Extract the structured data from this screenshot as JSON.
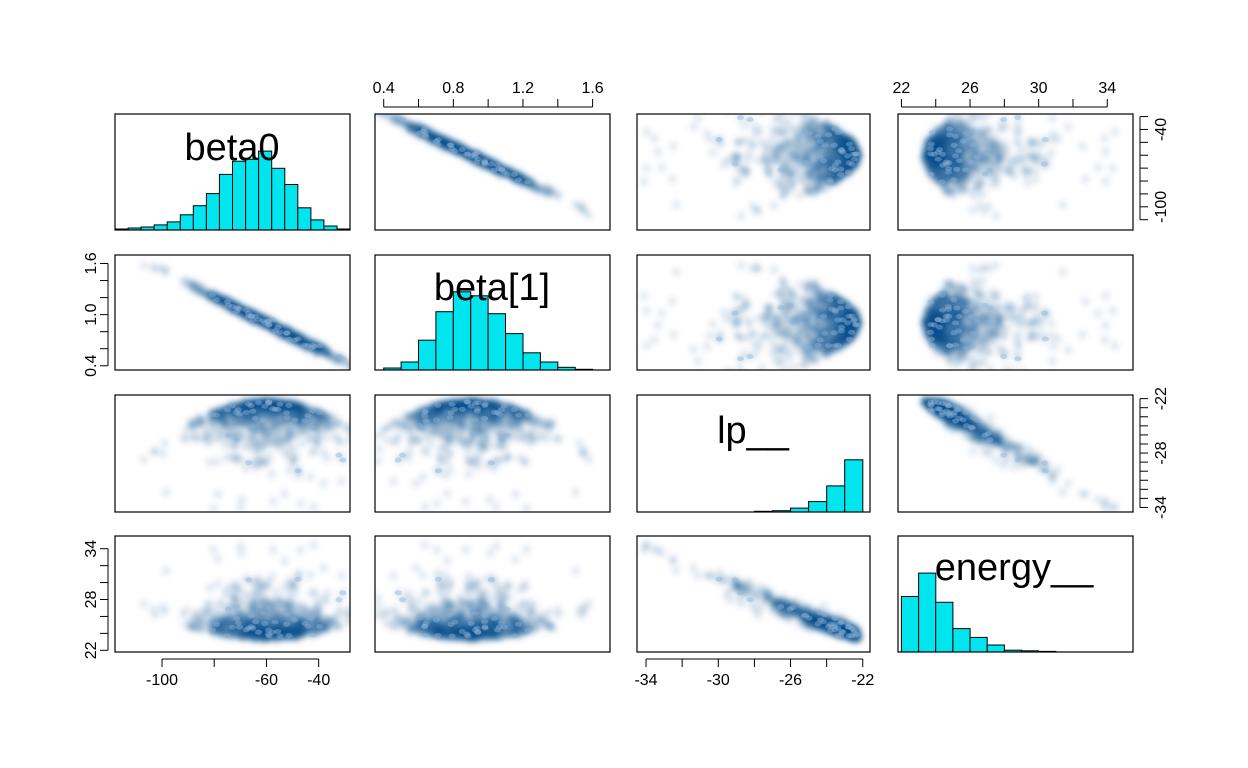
{
  "chart_data": {
    "type": "pairs",
    "variables": [
      "beta0",
      "beta[1]",
      "lp__",
      "energy__"
    ],
    "diag_type": "histogram",
    "offdiag_type": "smoothed-scatter",
    "colors": {
      "hist_fill": "#00E5EE",
      "density": "#08306B",
      "frame": "#000000"
    },
    "axes": {
      "beta0": {
        "range": [
          -118,
          -28
        ],
        "ticks": [
          -100,
          -80,
          -60,
          -40
        ],
        "tick_labels": [
          "-100",
          "",
          "-60",
          "-40"
        ],
        "right_ticks": [
          -30,
          -40,
          -50,
          -60,
          -70,
          -80,
          -90,
          -100,
          -110
        ],
        "right_labels": [
          "",
          "-40",
          "",
          "",
          "",
          "",
          "",
          "-100",
          ""
        ]
      },
      "beta1": {
        "range": [
          0.35,
          1.7
        ],
        "ticks": [
          0.4,
          0.6,
          0.8,
          1.0,
          1.2,
          1.4,
          1.6
        ],
        "top_labels": [
          "0.4",
          "",
          "0.8",
          "",
          "1.2",
          "",
          "1.6"
        ],
        "left_labels": [
          "0.4",
          "",
          "",
          "1.0",
          "",
          "",
          "1.6"
        ]
      },
      "lp": {
        "range": [
          -34.5,
          -21.6
        ],
        "ticks": [
          -34,
          -32,
          -30,
          -28,
          -26,
          -24,
          -22
        ],
        "bottom_labels": [
          "-34",
          "",
          "-30",
          "",
          "-26",
          "",
          "-22"
        ],
        "right_ticks": [
          -22,
          -23,
          -24,
          -25,
          -26,
          -27,
          -28,
          -29,
          -30,
          -31,
          -32,
          -33,
          -34
        ],
        "right_labels": [
          "-22",
          "",
          "",
          "",
          "",
          "",
          "-28",
          "",
          "",
          "",
          "",
          "",
          "-34"
        ]
      },
      "energy": {
        "range": [
          21.8,
          35.5
        ],
        "ticks": [
          22,
          24,
          26,
          28,
          30,
          32,
          34
        ],
        "top_labels": [
          "22",
          "",
          "26",
          "",
          "30",
          "",
          "34"
        ],
        "left_ticks": [
          22,
          24,
          26,
          28,
          30,
          32,
          34
        ],
        "left_labels": [
          "22",
          "",
          "",
          "28",
          "",
          "",
          "34"
        ]
      }
    },
    "histograms": {
      "beta0": {
        "bin_edges": [
          -118,
          -113,
          -108,
          -103,
          -98,
          -93,
          -88,
          -83,
          -78,
          -73,
          -68,
          -63,
          -58,
          -53,
          -48,
          -43,
          -38,
          -33,
          -28
        ],
        "counts": [
          1,
          2,
          3,
          5,
          8,
          15,
          24,
          36,
          55,
          68,
          70,
          78,
          61,
          45,
          22,
          10,
          4,
          1
        ]
      },
      "beta1": {
        "bin_edges": [
          0.4,
          0.5,
          0.6,
          0.7,
          0.8,
          0.9,
          1.0,
          1.1,
          1.2,
          1.3,
          1.4,
          1.5,
          1.6,
          1.7
        ],
        "counts": [
          3,
          12,
          45,
          88,
          118,
          112,
          85,
          55,
          26,
          12,
          4,
          1,
          0
        ]
      },
      "lp": {
        "bin_edges": [
          -34,
          -33,
          -32,
          -31,
          -30,
          -29,
          -28,
          -27,
          -26,
          -25,
          -24,
          -23,
          -22
        ],
        "counts": [
          0,
          0,
          0,
          0,
          0,
          0,
          1,
          2,
          6,
          16,
          40,
          80,
          122
        ]
      },
      "energy": {
        "bin_edges": [
          22,
          23,
          24,
          25,
          26,
          27,
          28,
          29,
          30,
          31
        ],
        "counts": [
          95,
          135,
          85,
          40,
          25,
          12,
          3,
          2,
          1
        ]
      }
    },
    "correlations": {
      "beta0_beta1": -0.99,
      "beta0_lp": "quadratic, max at beta0 = -60",
      "beta1_lp": "quadratic, max at beta1 = 0.9",
      "lp_energy": -0.7,
      "beta0_energy": "quadratic, min at beta0 = -60",
      "beta1_energy": "quadratic, min at beta1 = 0.9"
    }
  }
}
